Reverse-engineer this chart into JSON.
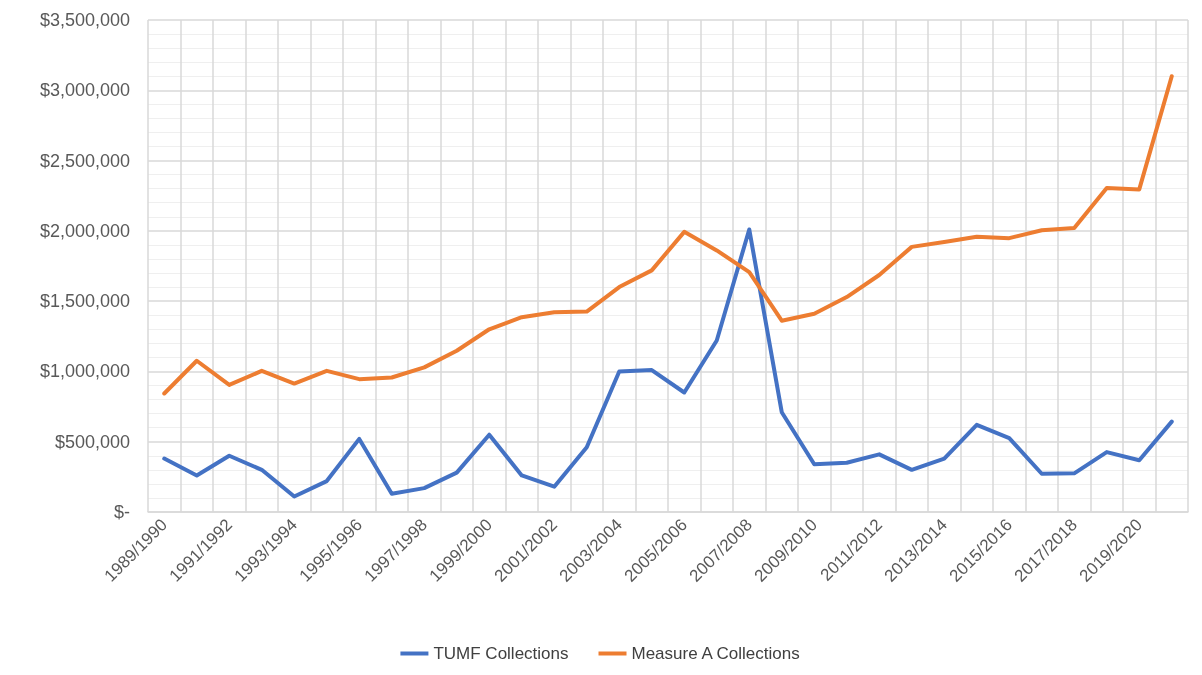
{
  "chart_data": {
    "type": "line",
    "categories": [
      "1989/1990",
      null,
      "1991/1992",
      null,
      "1993/1994",
      null,
      "1995/1996",
      null,
      "1997/1998",
      null,
      "1999/2000",
      null,
      "2001/2002",
      null,
      "2003/2004",
      null,
      "2005/2006",
      null,
      "2007/2008",
      null,
      "2009/2010",
      null,
      "2011/2012",
      null,
      "2013/2014",
      null,
      "2015/2016",
      null,
      "2017/2018",
      null,
      "2019/2020",
      null
    ],
    "series": [
      {
        "name": "TUMF Collections",
        "color": "#4472c4",
        "values": [
          380000,
          260000,
          400000,
          300000,
          110000,
          220000,
          520000,
          130000,
          170000,
          280000,
          550000,
          260000,
          180000,
          460000,
          1000000,
          1010000,
          850000,
          1220000,
          2010000,
          710000,
          340000,
          350000,
          410000,
          300000,
          380000,
          620000,
          525000,
          272000,
          275000,
          426000,
          368000,
          643000
        ]
      },
      {
        "name": "Measure A Collections",
        "color": "#ed7d31",
        "values": [
          843000,
          1076000,
          904000,
          1004000,
          914000,
          1004000,
          945000,
          957000,
          1029000,
          1147000,
          1300000,
          1386000,
          1421000,
          1426000,
          1600000,
          1719000,
          1993000,
          1861000,
          1707000,
          1361000,
          1410000,
          1529000,
          1686000,
          1886000,
          1920000,
          1958000,
          1948000,
          2004000,
          2021000,
          2305000,
          2295000,
          3100000
        ]
      }
    ],
    "ylim": [
      0,
      3500000
    ],
    "yticks": [
      {
        "value": 0,
        "label": "$-"
      },
      {
        "value": 500000,
        "label": "$500,000"
      },
      {
        "value": 1000000,
        "label": "$1,000,000"
      },
      {
        "value": 1500000,
        "label": "$1,500,000"
      },
      {
        "value": 2000000,
        "label": "$2,000,000"
      },
      {
        "value": 2500000,
        "label": "$2,500,000"
      },
      {
        "value": 3000000,
        "label": "$3,000,000"
      },
      {
        "value": 3500000,
        "label": "$3,500,000"
      }
    ],
    "grid": true,
    "legend": "bottom",
    "marker": "none",
    "line_style": "solid"
  }
}
